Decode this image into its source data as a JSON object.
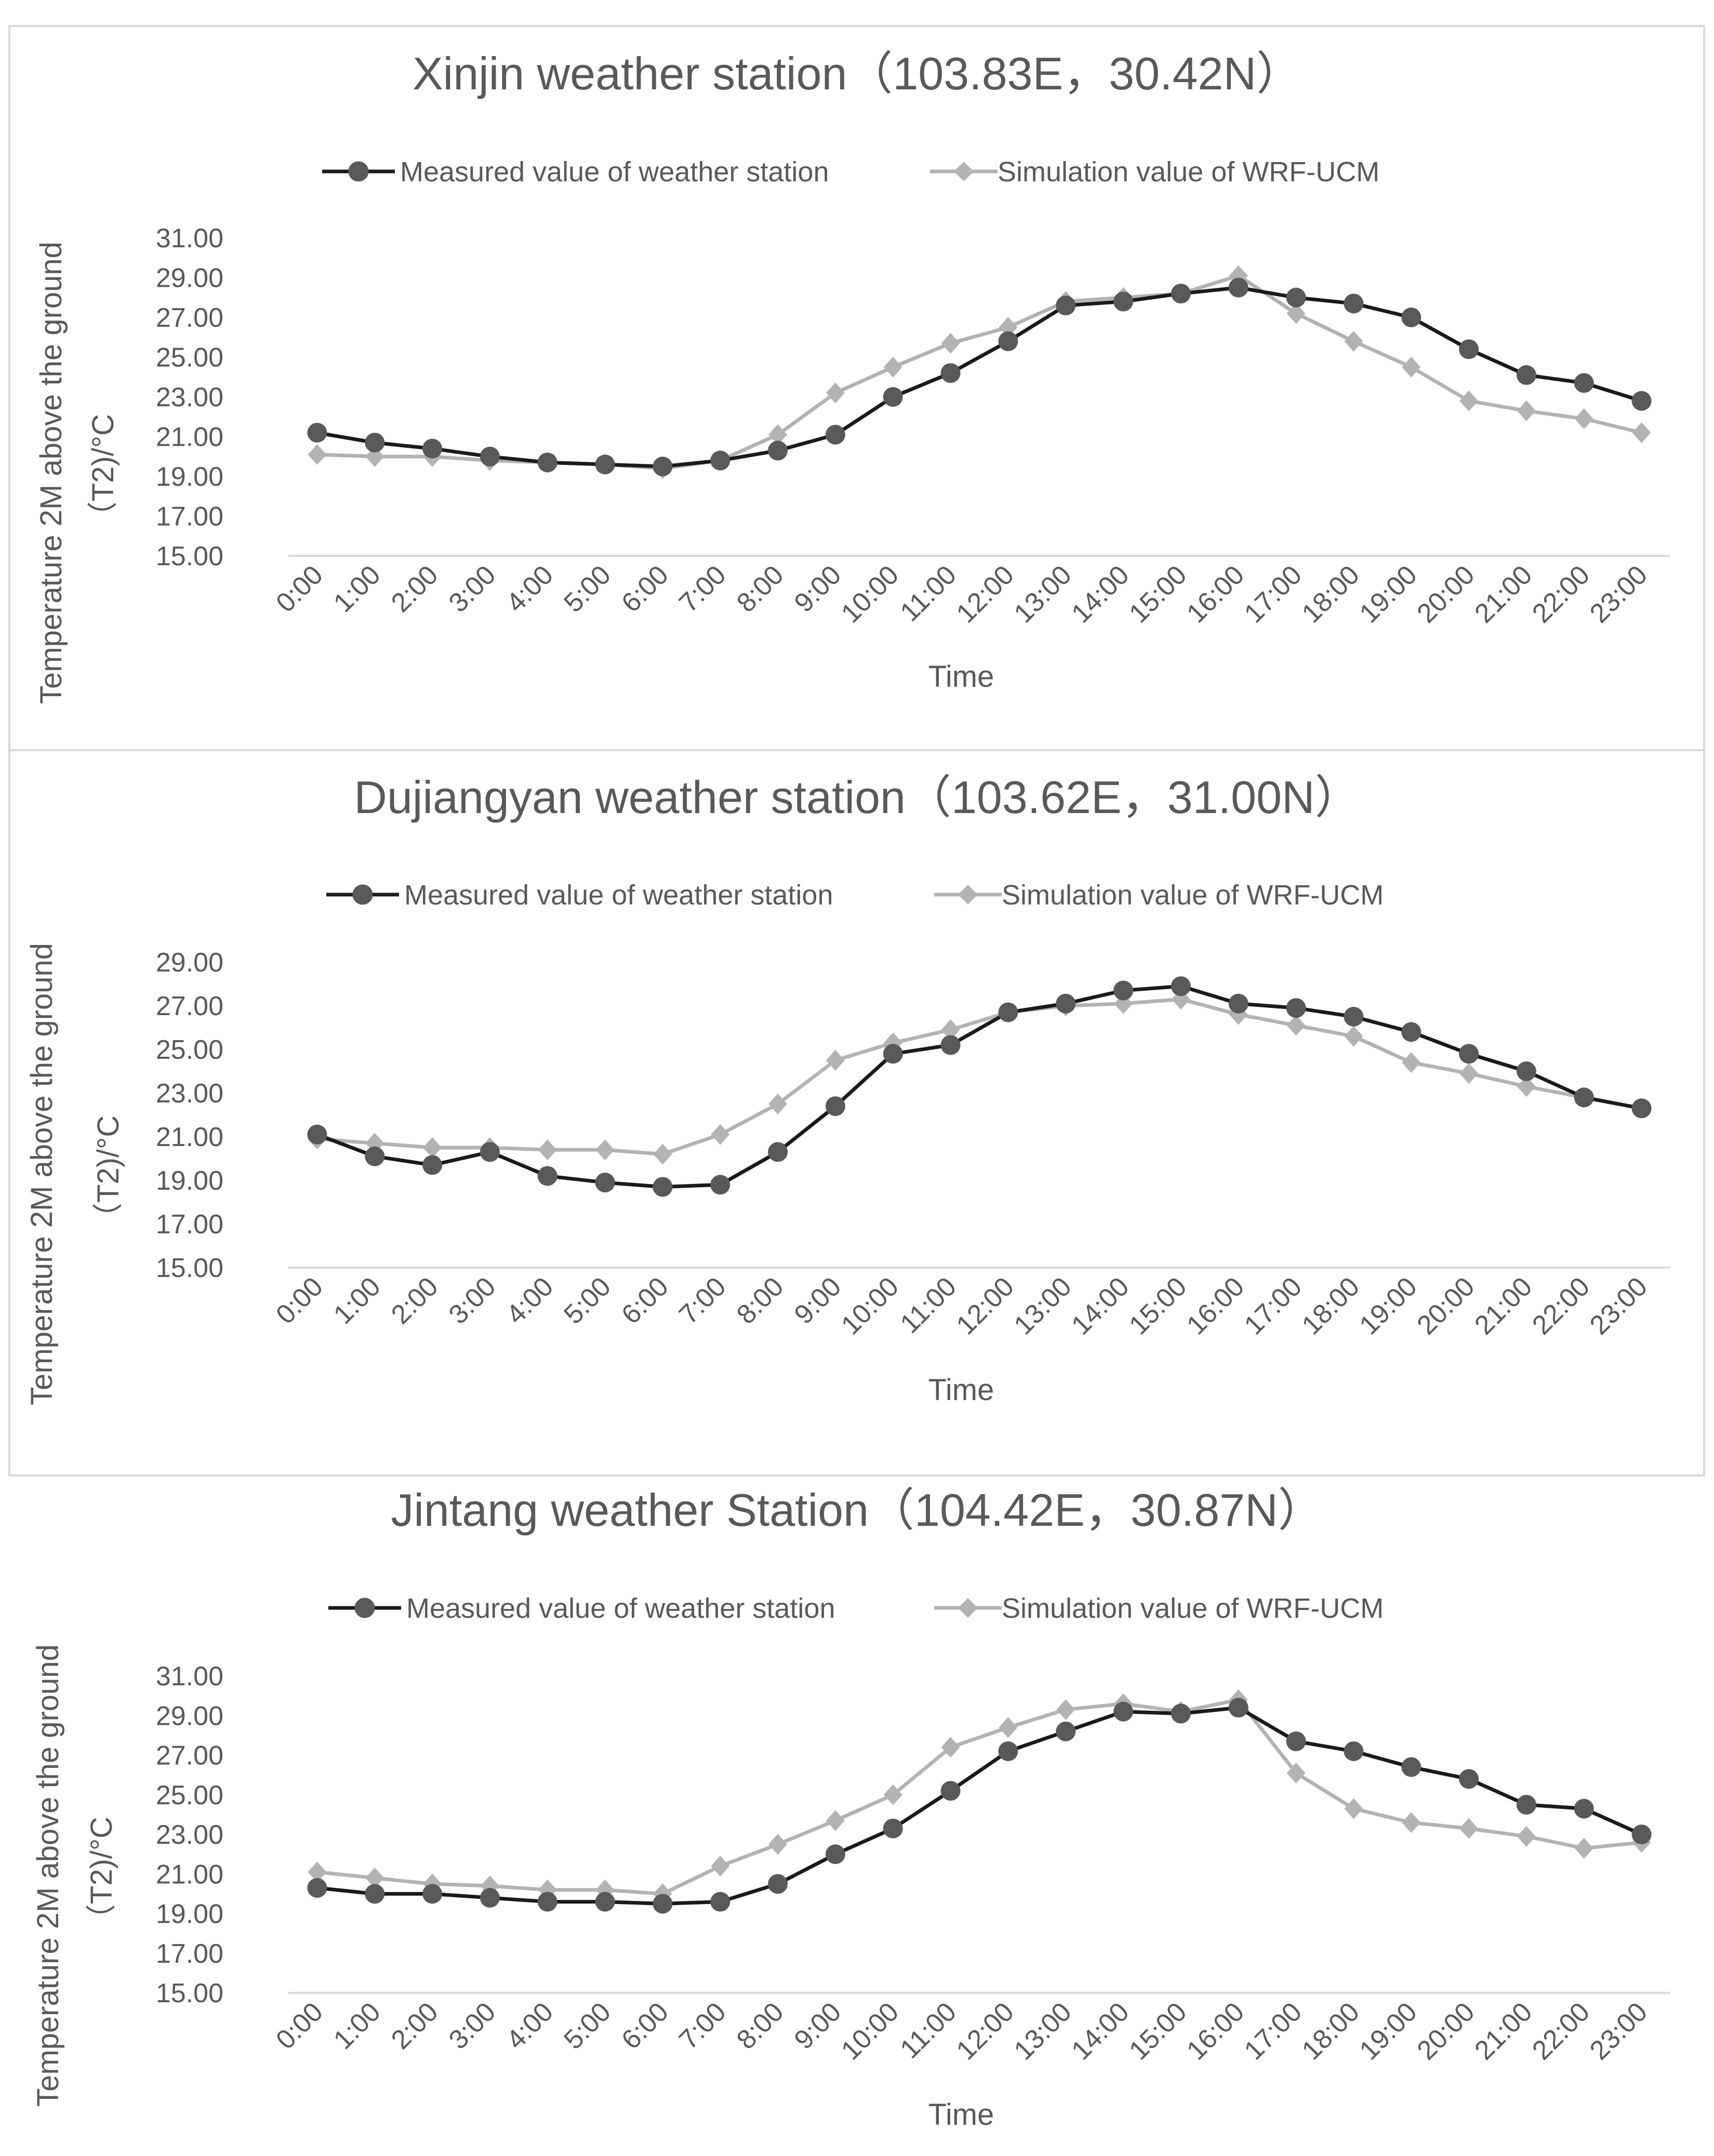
{
  "colors": {
    "measured": "#1a1a1a",
    "measured_marker": "#595959",
    "simulated": "#b3b3b3",
    "text": "#595959",
    "axis": "#d9d9d9"
  },
  "chart_data": [
    {
      "type": "line",
      "title": "Xinjin weather station（103.83E，30.42N）",
      "xlabel": "Time",
      "ylabel_line1": "Temperature 2M above the ground",
      "ylabel_line2": "（T2)/°C",
      "ylim": [
        15,
        31
      ],
      "yticks": [
        "15.00",
        "17.00",
        "19.00",
        "21.00",
        "23.00",
        "25.00",
        "27.00",
        "29.00",
        "31.00"
      ],
      "categories": [
        "0:00",
        "1:00",
        "2:00",
        "3:00",
        "4:00",
        "5:00",
        "6:00",
        "7:00",
        "8:00",
        "9:00",
        "10:00",
        "11:00",
        "12:00",
        "13:00",
        "14:00",
        "15:00",
        "16:00",
        "17:00",
        "18:00",
        "19:00",
        "20:00",
        "21:00",
        "22:00",
        "23:00"
      ],
      "series": [
        {
          "name": "Measured value of weather station",
          "marker": "circle",
          "values": [
            21.2,
            20.7,
            20.4,
            20.0,
            19.7,
            19.6,
            19.5,
            19.8,
            20.3,
            21.1,
            23.0,
            24.2,
            25.8,
            27.6,
            27.8,
            28.2,
            28.5,
            28.0,
            27.7,
            27.0,
            25.4,
            24.1,
            23.7,
            22.8
          ]
        },
        {
          "name": "Simulation value of WRF-UCM",
          "marker": "diamond",
          "values": [
            20.1,
            20.0,
            20.0,
            19.8,
            19.7,
            19.6,
            19.4,
            19.8,
            21.1,
            23.2,
            24.5,
            25.7,
            26.5,
            27.8,
            28.0,
            28.2,
            29.1,
            27.2,
            25.8,
            24.5,
            22.8,
            22.3,
            21.9,
            21.2
          ]
        }
      ]
    },
    {
      "type": "line",
      "title": "Dujiangyan weather station（103.62E，31.00N）",
      "xlabel": "Time",
      "ylabel_line1": "Temperature 2M above the ground",
      "ylabel_line2": "（T2)/°C",
      "ylim": [
        15,
        29
      ],
      "yticks": [
        "15.00",
        "17.00",
        "19.00",
        "21.00",
        "23.00",
        "25.00",
        "27.00",
        "29.00"
      ],
      "categories": [
        "0:00",
        "1:00",
        "2:00",
        "3:00",
        "4:00",
        "5:00",
        "6:00",
        "7:00",
        "8:00",
        "9:00",
        "10:00",
        "11:00",
        "12:00",
        "13:00",
        "14:00",
        "15:00",
        "16:00",
        "17:00",
        "18:00",
        "19:00",
        "20:00",
        "21:00",
        "22:00",
        "23:00"
      ],
      "series": [
        {
          "name": "Measured value of weather station",
          "marker": "circle",
          "values": [
            21.1,
            20.1,
            19.7,
            20.3,
            19.2,
            18.9,
            18.7,
            18.8,
            20.3,
            22.4,
            24.8,
            25.2,
            26.7,
            27.1,
            27.7,
            27.9,
            27.1,
            26.9,
            26.5,
            25.8,
            24.8,
            24.0,
            22.8,
            22.3
          ]
        },
        {
          "name": "Simulation value of WRF-UCM",
          "marker": "diamond",
          "values": [
            20.9,
            20.7,
            20.5,
            20.5,
            20.4,
            20.4,
            20.2,
            21.1,
            22.5,
            24.5,
            25.3,
            25.9,
            26.7,
            27.0,
            27.1,
            27.3,
            26.6,
            26.1,
            25.6,
            24.4,
            23.9,
            23.3,
            22.8,
            22.3
          ]
        }
      ]
    },
    {
      "type": "line",
      "title": "Jintang weather Station（104.42E，30.87N）",
      "xlabel": "Time",
      "ylabel_line1": "Temperature 2M above the ground",
      "ylabel_line2": "（T2)/°C",
      "ylim": [
        15,
        31
      ],
      "yticks": [
        "15.00",
        "17.00",
        "19.00",
        "21.00",
        "23.00",
        "25.00",
        "27.00",
        "29.00",
        "31.00"
      ],
      "categories": [
        "0:00",
        "1:00",
        "2:00",
        "3:00",
        "4:00",
        "5:00",
        "6:00",
        "7:00",
        "8:00",
        "9:00",
        "10:00",
        "11:00",
        "12:00",
        "13:00",
        "14:00",
        "15:00",
        "16:00",
        "17:00",
        "18:00",
        "19:00",
        "20:00",
        "21:00",
        "22:00",
        "23:00"
      ],
      "series": [
        {
          "name": "Measured value of weather station",
          "marker": "circle",
          "values": [
            20.3,
            20.0,
            20.0,
            19.8,
            19.6,
            19.6,
            19.5,
            19.6,
            20.5,
            22.0,
            23.3,
            25.2,
            27.2,
            28.2,
            29.2,
            29.1,
            29.4,
            27.7,
            27.2,
            26.4,
            25.8,
            24.5,
            24.3,
            23.0
          ]
        },
        {
          "name": "Simulation value of WRF-UCM",
          "marker": "diamond",
          "values": [
            21.1,
            20.8,
            20.5,
            20.4,
            20.2,
            20.2,
            20.0,
            21.4,
            22.5,
            23.7,
            25.0,
            27.4,
            28.4,
            29.3,
            29.6,
            29.2,
            29.8,
            26.1,
            24.3,
            23.6,
            23.3,
            22.9,
            22.3,
            22.6
          ]
        }
      ]
    }
  ]
}
